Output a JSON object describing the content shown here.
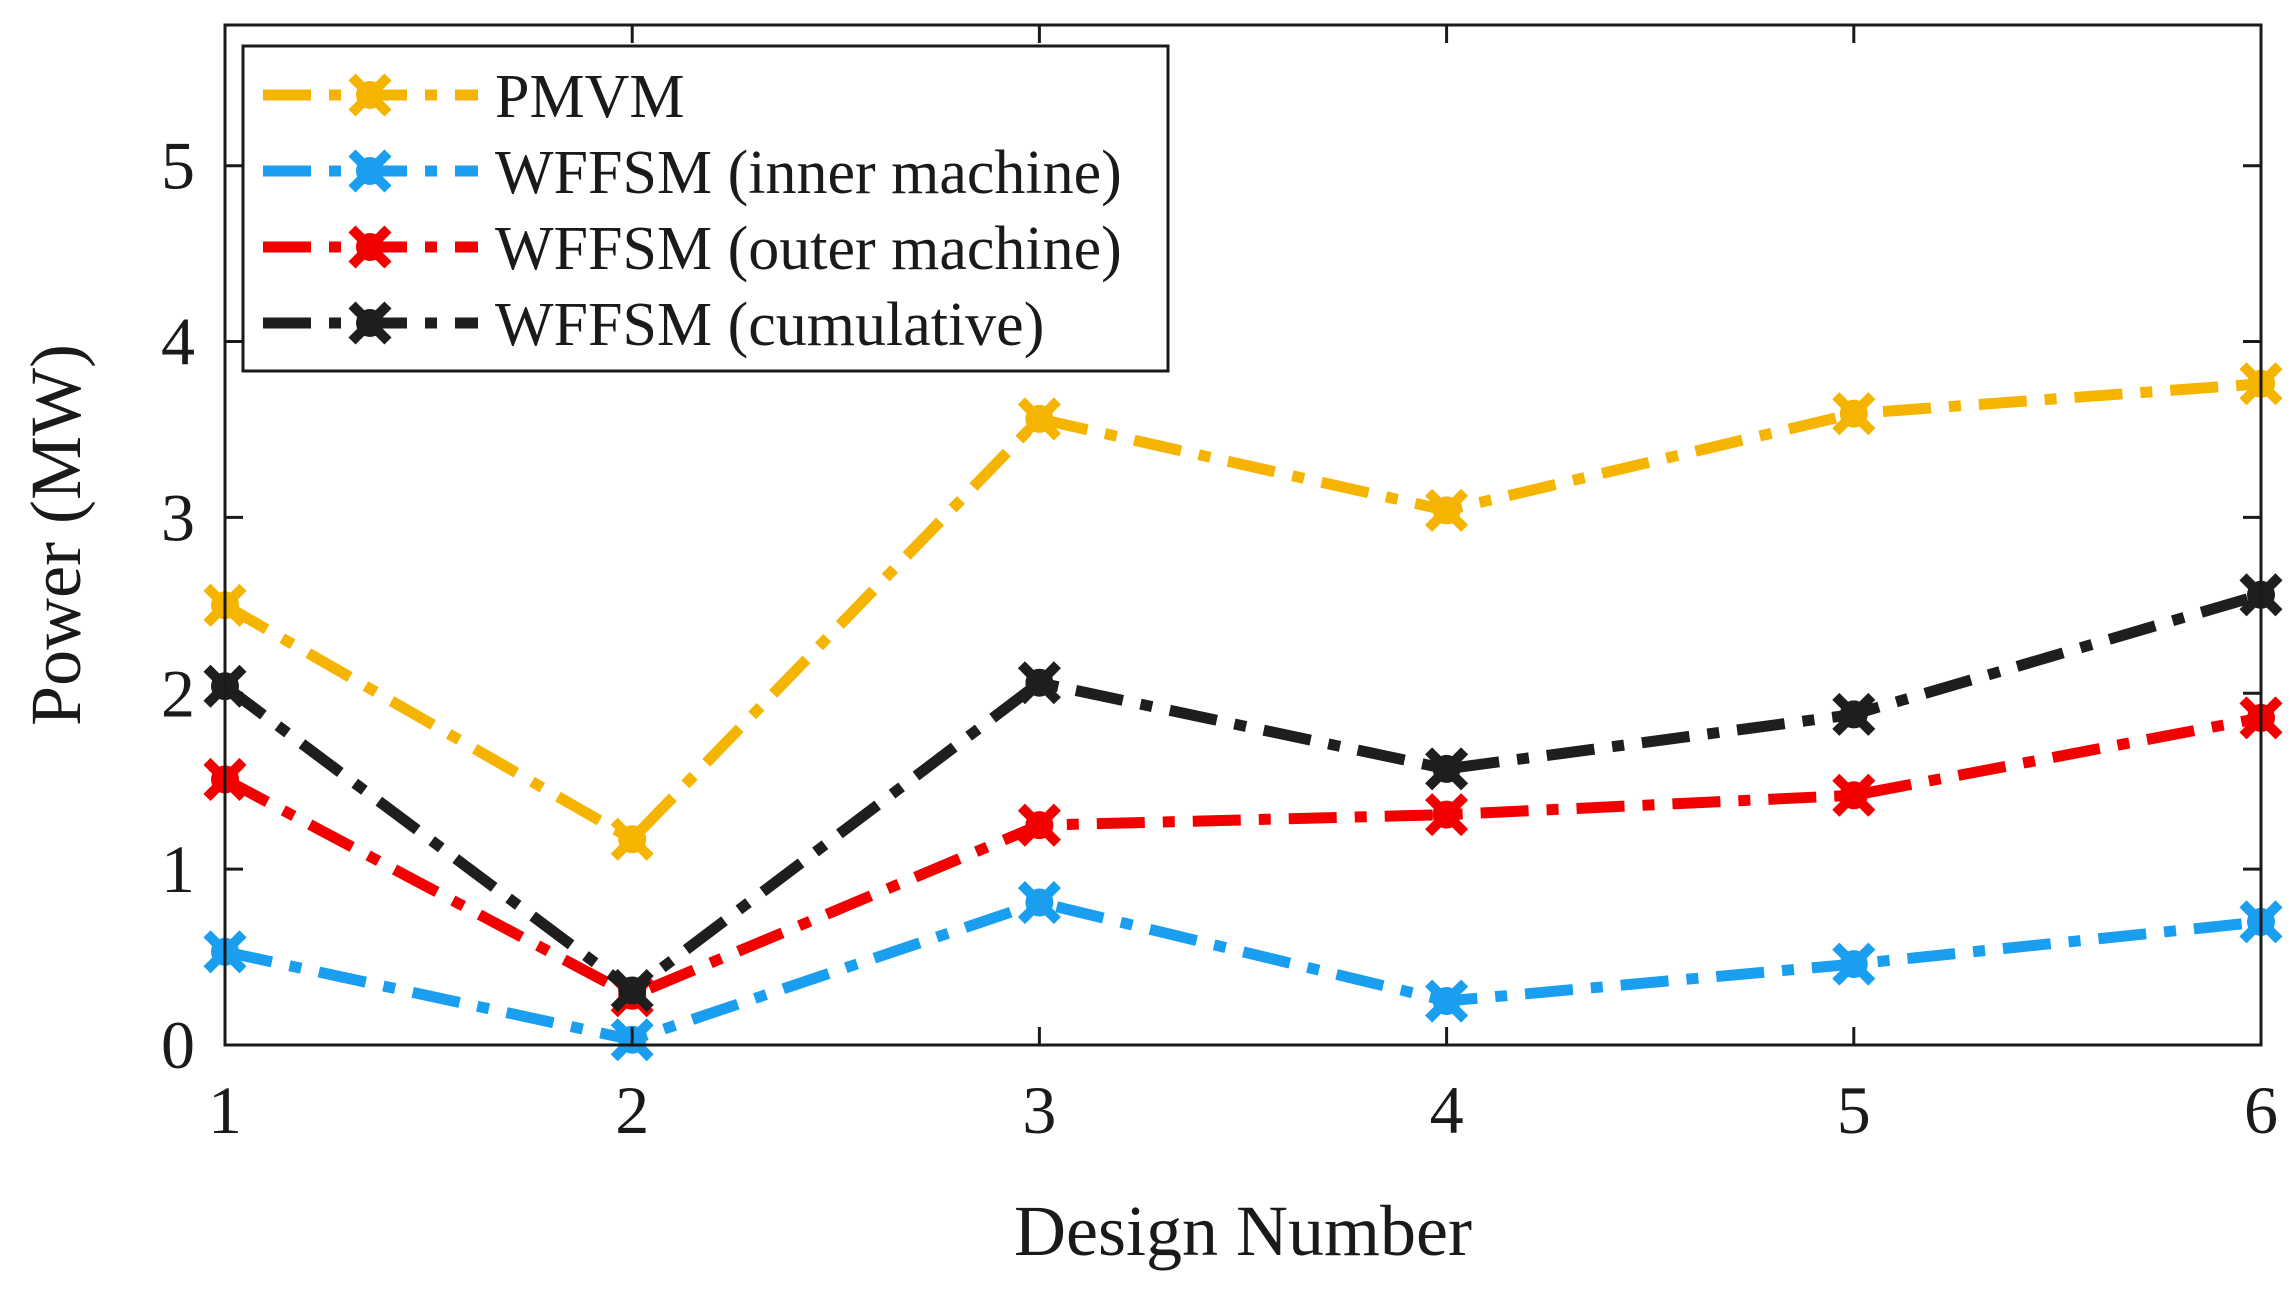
{
  "chart_data": {
    "type": "line",
    "xlabel": "Design Number",
    "ylabel": "Power (MW)",
    "xlim": [
      1,
      6
    ],
    "ylim": [
      0,
      5.8
    ],
    "xticks": [
      "1",
      "2",
      "3",
      "4",
      "5",
      "6"
    ],
    "yticks": [
      "0",
      "1",
      "2",
      "3",
      "4",
      "5"
    ],
    "x": [
      1,
      2,
      3,
      4,
      5,
      6
    ],
    "grid": false,
    "legend_position": "top-left",
    "series": [
      {
        "name": "PMVM",
        "values": [
          2.5,
          1.17,
          3.56,
          3.04,
          3.59,
          3.76
        ],
        "color": "#F5B400",
        "marker": "cross-circle",
        "line_style": "dash-dot"
      },
      {
        "name": "WFFSM (inner machine)",
        "values": [
          0.53,
          0.03,
          0.81,
          0.25,
          0.46,
          0.7
        ],
        "color": "#1A9EF0",
        "marker": "cross-circle",
        "line_style": "dash-dot"
      },
      {
        "name": "WFFSM (outer machine)",
        "values": [
          1.51,
          0.28,
          1.25,
          1.31,
          1.42,
          1.86
        ],
        "color": "#F20000",
        "marker": "cross-circle",
        "line_style": "dash-dot"
      },
      {
        "name": "WFFSM (cumulative)",
        "values": [
          2.04,
          0.31,
          2.06,
          1.57,
          1.88,
          2.56
        ],
        "color": "#1E1E1E",
        "marker": "cross-circle",
        "line_style": "dash-dot"
      }
    ]
  }
}
